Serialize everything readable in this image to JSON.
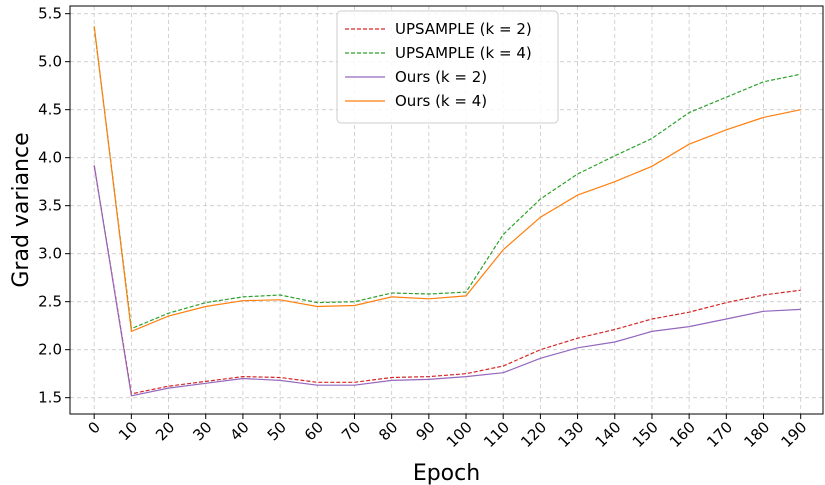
{
  "chart_data": {
    "type": "line",
    "title": "",
    "xlabel": "Epoch",
    "ylabel": "Grad variance",
    "x": [
      0,
      10,
      20,
      30,
      40,
      50,
      60,
      70,
      80,
      90,
      100,
      110,
      120,
      130,
      140,
      150,
      160,
      170,
      180,
      190
    ],
    "xticks": [
      "0",
      "10",
      "20",
      "30",
      "40",
      "50",
      "60",
      "70",
      "80",
      "90",
      "100",
      "110",
      "120",
      "130",
      "140",
      "150",
      "160",
      "170",
      "180",
      "190"
    ],
    "yticks": [
      "1.5",
      "2.0",
      "2.5",
      "3.0",
      "3.5",
      "4.0",
      "4.5",
      "5.0",
      "5.5"
    ],
    "xlim": [
      -6.5,
      196
    ],
    "ylim": [
      1.33,
      5.58
    ],
    "grid": true,
    "legend_position": "top-center",
    "series": [
      {
        "name": "UPSAMPLE (k = 2)",
        "color": "#d62728",
        "dashed": true,
        "values": [
          3.92,
          1.54,
          1.62,
          1.67,
          1.72,
          1.71,
          1.66,
          1.66,
          1.71,
          1.72,
          1.75,
          1.83,
          2.0,
          2.12,
          2.21,
          2.32,
          2.39,
          2.49,
          2.57,
          2.62
        ]
      },
      {
        "name": "UPSAMPLE (k = 4)",
        "color": "#2ca02c",
        "dashed": true,
        "values": [
          5.36,
          2.22,
          2.38,
          2.49,
          2.55,
          2.57,
          2.49,
          2.5,
          2.59,
          2.58,
          2.6,
          3.2,
          3.57,
          3.83,
          4.02,
          4.2,
          4.47,
          4.63,
          4.79,
          4.87
        ]
      },
      {
        "name": "Ours (k = 2)",
        "color": "#9467bd",
        "dashed": false,
        "values": [
          3.92,
          1.52,
          1.6,
          1.65,
          1.7,
          1.68,
          1.63,
          1.63,
          1.68,
          1.69,
          1.72,
          1.76,
          1.91,
          2.02,
          2.08,
          2.19,
          2.24,
          2.32,
          2.4,
          2.42
        ]
      },
      {
        "name": "Ours (k = 4)",
        "color": "#ff7f0e",
        "dashed": false,
        "values": [
          5.37,
          2.19,
          2.35,
          2.45,
          2.51,
          2.52,
          2.45,
          2.46,
          2.55,
          2.53,
          2.56,
          3.04,
          3.38,
          3.61,
          3.75,
          3.91,
          4.14,
          4.29,
          4.42,
          4.5
        ]
      }
    ]
  }
}
